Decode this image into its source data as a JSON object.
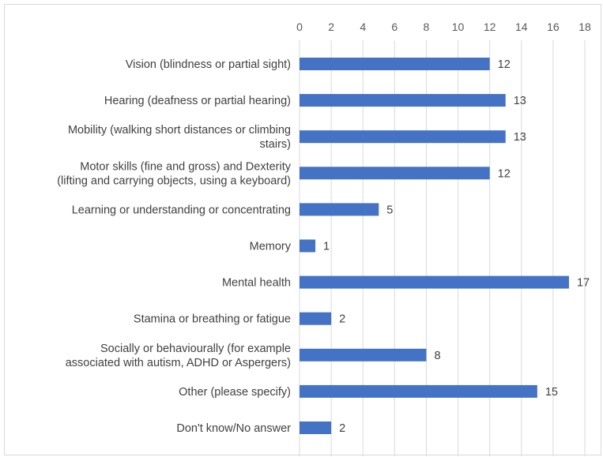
{
  "chart_data": {
    "type": "bar",
    "orientation": "horizontal",
    "categories": [
      [
        "Vision (blindness or partial sight)"
      ],
      [
        "Hearing (deafness or partial hearing)"
      ],
      [
        "Mobility (walking short distances or climbing",
        "stairs)"
      ],
      [
        "Motor skills (fine and gross) and Dexterity",
        "(lifting and carrying objects, using a keyboard)"
      ],
      [
        "Learning or understanding or concentrating"
      ],
      [
        "Memory"
      ],
      [
        "Mental health"
      ],
      [
        "Stamina or breathing or fatigue"
      ],
      [
        "Socially or behaviourally (for example",
        "associated with autism, ADHD or Aspergers)"
      ],
      [
        "Other (please specify)"
      ],
      [
        "Don't know/No answer"
      ]
    ],
    "values": [
      12,
      13,
      13,
      12,
      5,
      1,
      17,
      2,
      8,
      15,
      2
    ],
    "x_ticks": [
      0,
      2,
      4,
      6,
      8,
      10,
      12,
      14,
      16,
      18
    ],
    "xlim": [
      0,
      18
    ],
    "title": "",
    "xlabel": "",
    "ylabel": "",
    "grid": true,
    "legend": "none",
    "axis_position": "top",
    "bar_color": "#4472c4"
  }
}
